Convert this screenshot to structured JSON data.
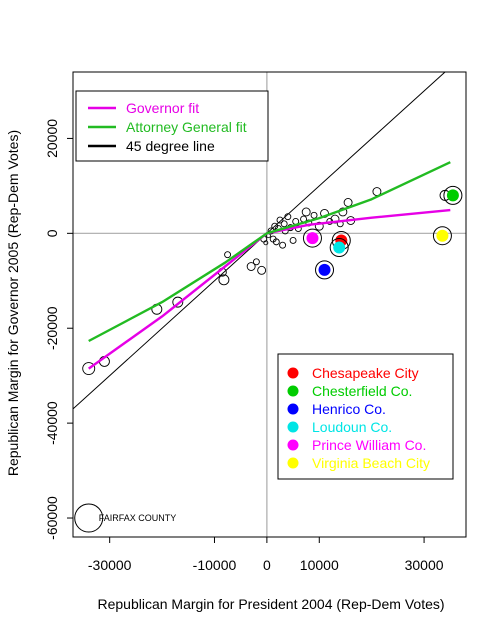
{
  "chart_data": {
    "type": "scatter",
    "title": "",
    "xlabel": "Republican Margin for President 2004 (Rep-Dem Votes)",
    "ylabel": "Republican Margin for Governor 2005 (Rep-Dem Votes)",
    "xlim": [
      -37000,
      38000
    ],
    "ylim": [
      -64000,
      34000
    ],
    "x_ticks": [
      -30000,
      -10000,
      0,
      10000,
      30000
    ],
    "x_tick_labels": [
      "-30000",
      "-10000",
      "0",
      "10000",
      "30000"
    ],
    "y_ticks": [
      -60000,
      -40000,
      -20000,
      0,
      20000
    ],
    "y_tick_labels": [
      "-60000",
      "-40000",
      "-20000",
      "0",
      "20000"
    ],
    "grid": false,
    "reference_lines": [
      {
        "orientation": "vertical",
        "x": 0,
        "color": "#aaaaaa"
      },
      {
        "orientation": "horizontal",
        "y": 0,
        "color": "#aaaaaa"
      }
    ],
    "line_legend": {
      "placement": "top-left",
      "entries": [
        {
          "label": "Governor fit",
          "color": "#e600e6"
        },
        {
          "label": "Attorney General fit",
          "color": "#22bb22"
        },
        {
          "label": "45 degree line",
          "color": "#000000"
        }
      ]
    },
    "fits": [
      {
        "name": "Governor fit",
        "color": "#e600e6",
        "points": [
          [
            -34000,
            -28500
          ],
          [
            -20000,
            -17500
          ],
          [
            -8000,
            -7000
          ],
          [
            0,
            0
          ],
          [
            8000,
            1800
          ],
          [
            20000,
            3300
          ],
          [
            35000,
            4900
          ]
        ]
      },
      {
        "name": "Attorney General fit",
        "color": "#22bb22",
        "points": [
          [
            -34000,
            -22700
          ],
          [
            -20000,
            -14500
          ],
          [
            -8000,
            -6200
          ],
          [
            0,
            0
          ],
          [
            10000,
            3200
          ],
          [
            20000,
            7200
          ],
          [
            35000,
            15000
          ]
        ]
      }
    ],
    "diagonal": {
      "name": "45 degree line",
      "color": "#000000",
      "from": [
        -37000,
        -37000
      ],
      "to": [
        34000,
        34000
      ]
    },
    "open_points": [
      {
        "x": -34000,
        "y": -28500,
        "r": 6
      },
      {
        "x": -31000,
        "y": -27000,
        "r": 5
      },
      {
        "x": -21000,
        "y": -16000,
        "r": 5
      },
      {
        "x": -17000,
        "y": -14500,
        "r": 5
      },
      {
        "x": -8500,
        "y": -8200,
        "r": 4
      },
      {
        "x": -8200,
        "y": -9800,
        "r": 5
      },
      {
        "x": -7500,
        "y": -4500,
        "r": 3
      },
      {
        "x": -3000,
        "y": -7000,
        "r": 4
      },
      {
        "x": -2000,
        "y": -6000,
        "r": 3
      },
      {
        "x": -1000,
        "y": -7800,
        "r": 4
      },
      {
        "x": -600,
        "y": -1200,
        "r": 3
      },
      {
        "x": -200,
        "y": -2000,
        "r": 2
      },
      {
        "x": 300,
        "y": -500,
        "r": 2
      },
      {
        "x": 800,
        "y": 500,
        "r": 3
      },
      {
        "x": 1200,
        "y": -1200,
        "r": 3
      },
      {
        "x": 1500,
        "y": 1500,
        "r": 3
      },
      {
        "x": 1800,
        "y": -1800,
        "r": 3
      },
      {
        "x": 2200,
        "y": 1000,
        "r": 3
      },
      {
        "x": 2500,
        "y": 2800,
        "r": 3
      },
      {
        "x": 3000,
        "y": -2500,
        "r": 3
      },
      {
        "x": 3300,
        "y": 2000,
        "r": 3
      },
      {
        "x": 3500,
        "y": 500,
        "r": 3
      },
      {
        "x": 4000,
        "y": 3500,
        "r": 3
      },
      {
        "x": 4500,
        "y": 1200,
        "r": 3
      },
      {
        "x": 5000,
        "y": -1500,
        "r": 3
      },
      {
        "x": 5500,
        "y": 2500,
        "r": 3
      },
      {
        "x": 6000,
        "y": 1000,
        "r": 3
      },
      {
        "x": 7000,
        "y": 3000,
        "r": 3
      },
      {
        "x": 7500,
        "y": 4500,
        "r": 4
      },
      {
        "x": 8000,
        "y": 2200,
        "r": 3
      },
      {
        "x": 9000,
        "y": 3800,
        "r": 3
      },
      {
        "x": 10000,
        "y": 1500,
        "r": 4
      },
      {
        "x": 11000,
        "y": 4200,
        "r": 4
      },
      {
        "x": 12000,
        "y": 2500,
        "r": 3
      },
      {
        "x": 13000,
        "y": 3000,
        "r": 4
      },
      {
        "x": 14000,
        "y": 2000,
        "r": 3
      },
      {
        "x": 14500,
        "y": 4500,
        "r": 4
      },
      {
        "x": 15500,
        "y": 6500,
        "r": 4
      },
      {
        "x": 16000,
        "y": 2700,
        "r": 4
      },
      {
        "x": 21000,
        "y": 8800,
        "r": 4
      },
      {
        "x": 34000,
        "y": 8000,
        "r": 5
      }
    ],
    "highlighted": [
      {
        "name": "Chesapeake City",
        "color": "#ff0000",
        "x": 14200,
        "y": -1500
      },
      {
        "name": "Chesterfield Co.",
        "color": "#00cc00",
        "x": 35500,
        "y": 8000
      },
      {
        "name": "Henrico Co.",
        "color": "#0000ff",
        "x": 11000,
        "y": -7700
      },
      {
        "name": "Loudoun Co.",
        "color": "#00e5e5",
        "x": 13800,
        "y": -3000
      },
      {
        "name": "Prince William Co.",
        "color": "#ff00ff",
        "x": 8700,
        "y": -1000
      },
      {
        "name": "Virginia Beach City",
        "color": "#ffff00",
        "x": 33500,
        "y": -500
      }
    ],
    "point_legend": {
      "placement": "bottom-right",
      "entries": [
        {
          "label": "Chesapeake City",
          "color": "#ff0000"
        },
        {
          "label": "Chesterfield Co.",
          "color": "#00cc00"
        },
        {
          "label": "Henrico Co.",
          "color": "#0000ff"
        },
        {
          "label": "Loudoun Co.",
          "color": "#00e5e5"
        },
        {
          "label": "Prince William Co.",
          "color": "#ff00ff"
        },
        {
          "label": "Virginia Beach City",
          "color": "#ffff00"
        }
      ]
    },
    "annotation": {
      "text": "FAIRFAX COUNTY",
      "x": -34000,
      "y": -60000
    }
  }
}
